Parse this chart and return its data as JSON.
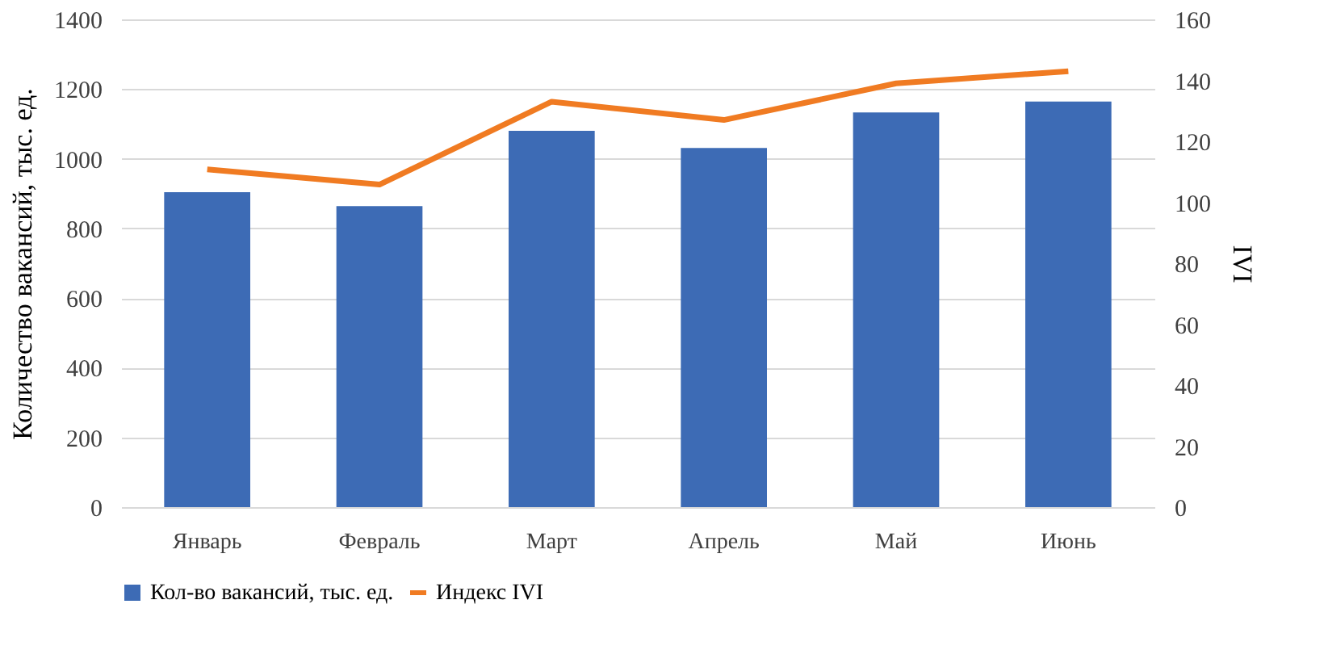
{
  "chart_data": {
    "type": "bar",
    "categories": [
      "Январь",
      "Февраль",
      "Март",
      "Апрель",
      "Май",
      "Июнь"
    ],
    "ylabel": "Количество вакансий, тыс. ед.",
    "y2label": "IVI",
    "ylim": [
      0,
      1400
    ],
    "yticks": [
      0,
      200,
      400,
      600,
      800,
      1000,
      1200,
      1400
    ],
    "y2lim": [
      0,
      160
    ],
    "y2ticks": [
      0,
      20,
      40,
      60,
      80,
      100,
      120,
      140,
      160
    ],
    "grid": "y",
    "legend": "bottom",
    "series": [
      {
        "name": "Кол-во вакансий, тыс. ед.",
        "color": "#3d6bb5",
        "values": [
          904,
          864,
          1080,
          1031,
          1133,
          1164
        ]
      },
      {
        "name": "Индекс IVI",
        "type": "line",
        "axis": "y2",
        "color": "#f07b22",
        "values": [
          110.8,
          105.8,
          133,
          127,
          139,
          143
        ]
      }
    ]
  }
}
